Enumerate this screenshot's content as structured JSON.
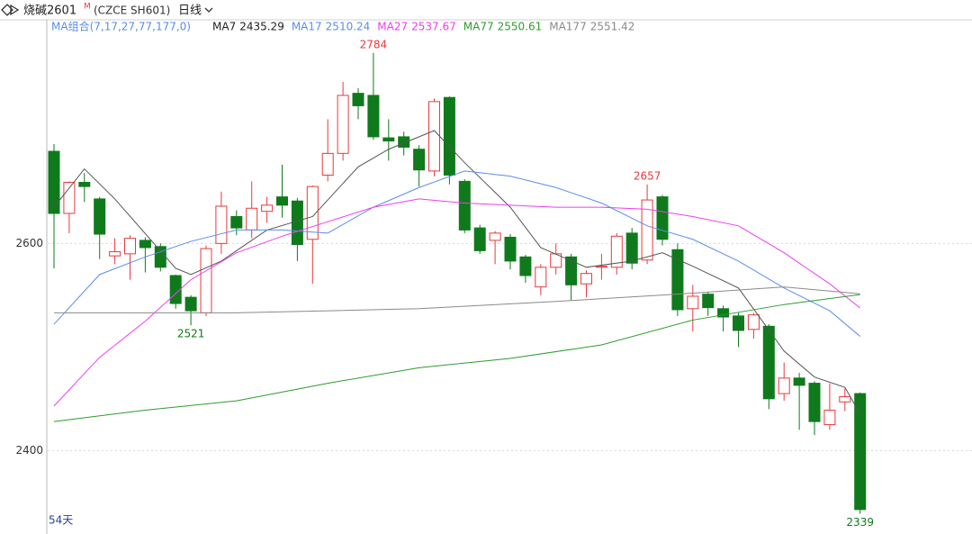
{
  "chart_data": {
    "type": "candlestick",
    "title": "烧碱2601",
    "title_sup": "M",
    "subtitle": "(CZCE SH601)",
    "period": "日线",
    "ma_group_label": "MA组合(7,17,27,77,177,0)",
    "footer": "54天",
    "up_color": "#e8393d",
    "down_color": "#0f7a1c",
    "ylim": [
      2322,
      2816
    ],
    "yticks": [
      2400,
      2600
    ],
    "grid": true,
    "candles": {
      "open": [
        2689,
        2629,
        2659,
        2643,
        2588,
        2590,
        2603,
        2597,
        2569,
        2548,
        2533,
        2600,
        2626,
        2613,
        2631,
        2645,
        2641,
        2604,
        2666,
        2687,
        2745,
        2743,
        2702,
        2703,
        2691,
        2670,
        2741,
        2660,
        2615,
        2603,
        2606,
        2587,
        2558,
        2577,
        2587,
        2561,
        2577,
        2577,
        2610,
        2584,
        2645,
        2594,
        2537,
        2551,
        2537,
        2530,
        2517,
        2520,
        2455,
        2470,
        2465,
        2425,
        2447,
        2455
      ],
      "high": [
        2696,
        2660,
        2668,
        2645,
        2605,
        2608,
        2606,
        2600,
        2570,
        2550,
        2598,
        2650,
        2632,
        2660,
        2645,
        2676,
        2644,
        2656,
        2720,
        2756,
        2750,
        2784,
        2720,
        2708,
        2695,
        2740,
        2742,
        2662,
        2618,
        2612,
        2609,
        2589,
        2580,
        2600,
        2590,
        2574,
        2590,
        2610,
        2615,
        2657,
        2647,
        2600,
        2560,
        2553,
        2540,
        2533,
        2533,
        2522,
        2485,
        2475,
        2467,
        2465,
        2460,
        2456
      ],
      "low": [
        2576,
        2610,
        2640,
        2585,
        2580,
        2565,
        2572,
        2573,
        2537,
        2521,
        2530,
        2590,
        2608,
        2605,
        2620,
        2625,
        2583,
        2561,
        2660,
        2680,
        2720,
        2700,
        2680,
        2685,
        2655,
        2665,
        2657,
        2610,
        2590,
        2580,
        2575,
        2562,
        2550,
        2570,
        2545,
        2548,
        2565,
        2570,
        2575,
        2580,
        2598,
        2530,
        2515,
        2530,
        2515,
        2500,
        2508,
        2440,
        2448,
        2420,
        2415,
        2420,
        2438,
        2339
      ],
      "close": [
        2629,
        2659,
        2655,
        2609,
        2592,
        2605,
        2596,
        2577,
        2542,
        2535,
        2595,
        2636,
        2615,
        2634,
        2637,
        2637,
        2599,
        2655,
        2687,
        2743,
        2733,
        2703,
        2699,
        2693,
        2671,
        2737,
        2666,
        2613,
        2593,
        2610,
        2583,
        2569,
        2577,
        2590,
        2560,
        2571,
        2578,
        2607,
        2581,
        2642,
        2604,
        2536,
        2549,
        2538,
        2529,
        2516,
        2531,
        2450,
        2470,
        2463,
        2428,
        2439,
        2452,
        2343
      ]
    },
    "ma_series": [
      {
        "name": "MA7",
        "color": "#555555",
        "current": 2435.29,
        "x": [
          0,
          2,
          4,
          8,
          9,
          11,
          14,
          17,
          20,
          22,
          25,
          27,
          30,
          32,
          35,
          38,
          40,
          42,
          45,
          48,
          50,
          52,
          53
        ],
        "values": [
          2635,
          2672,
          2643,
          2576,
          2570,
          2583,
          2613,
          2626,
          2674,
          2691,
          2709,
          2678,
          2635,
          2596,
          2577,
          2583,
          2591,
          2578,
          2557,
          2496,
          2471,
          2461,
          2435.29
        ]
      },
      {
        "name": "MA17",
        "color": "#5b8ee8",
        "current": 2510.24,
        "x": [
          0,
          3,
          6,
          9,
          12,
          15,
          18,
          21,
          24,
          27,
          30,
          33,
          36,
          39,
          42,
          45,
          48,
          51,
          53
        ],
        "values": [
          2522,
          2570,
          2587,
          2602,
          2613,
          2613,
          2610,
          2635,
          2654,
          2670,
          2665,
          2654,
          2639,
          2617,
          2604,
          2583,
          2557,
          2535,
          2510.24
        ]
      },
      {
        "name": "MA27",
        "color": "#f03cf0",
        "current": 2537.67,
        "x": [
          0,
          3,
          6,
          9,
          12,
          15,
          18,
          21,
          24,
          27,
          30,
          33,
          36,
          39,
          42,
          45,
          48,
          51,
          53
        ],
        "values": [
          2443,
          2490,
          2525,
          2565,
          2591,
          2607,
          2621,
          2635,
          2643,
          2639,
          2637,
          2635,
          2635,
          2633,
          2626,
          2617,
          2591,
          2561,
          2537.67
        ]
      },
      {
        "name": "MA77",
        "color": "#2e9c2e",
        "current": 2550.61,
        "x": [
          0,
          6,
          12,
          18,
          24,
          30,
          36,
          42,
          48,
          53
        ],
        "values": [
          2428,
          2439,
          2448,
          2465,
          2480,
          2489,
          2502,
          2526,
          2541,
          2550.61
        ]
      },
      {
        "name": "MA177",
        "color": "#8a8a8a",
        "current": 2551.42,
        "x": [
          0,
          12,
          24,
          33,
          42,
          48,
          53
        ],
        "values": [
          2533,
          2533,
          2537,
          2544,
          2552,
          2558,
          2551.42
        ]
      }
    ],
    "annotations": [
      {
        "index": 21,
        "value": 2784,
        "position": "above",
        "color": "#e8393d"
      },
      {
        "index": 9,
        "value": 2521,
        "position": "below",
        "color": "#0f7a1c"
      },
      {
        "index": 39,
        "value": 2657,
        "position": "above",
        "color": "#e8393d"
      },
      {
        "index": 53,
        "value": 2339,
        "position": "below",
        "color": "#0f7a1c"
      }
    ]
  }
}
